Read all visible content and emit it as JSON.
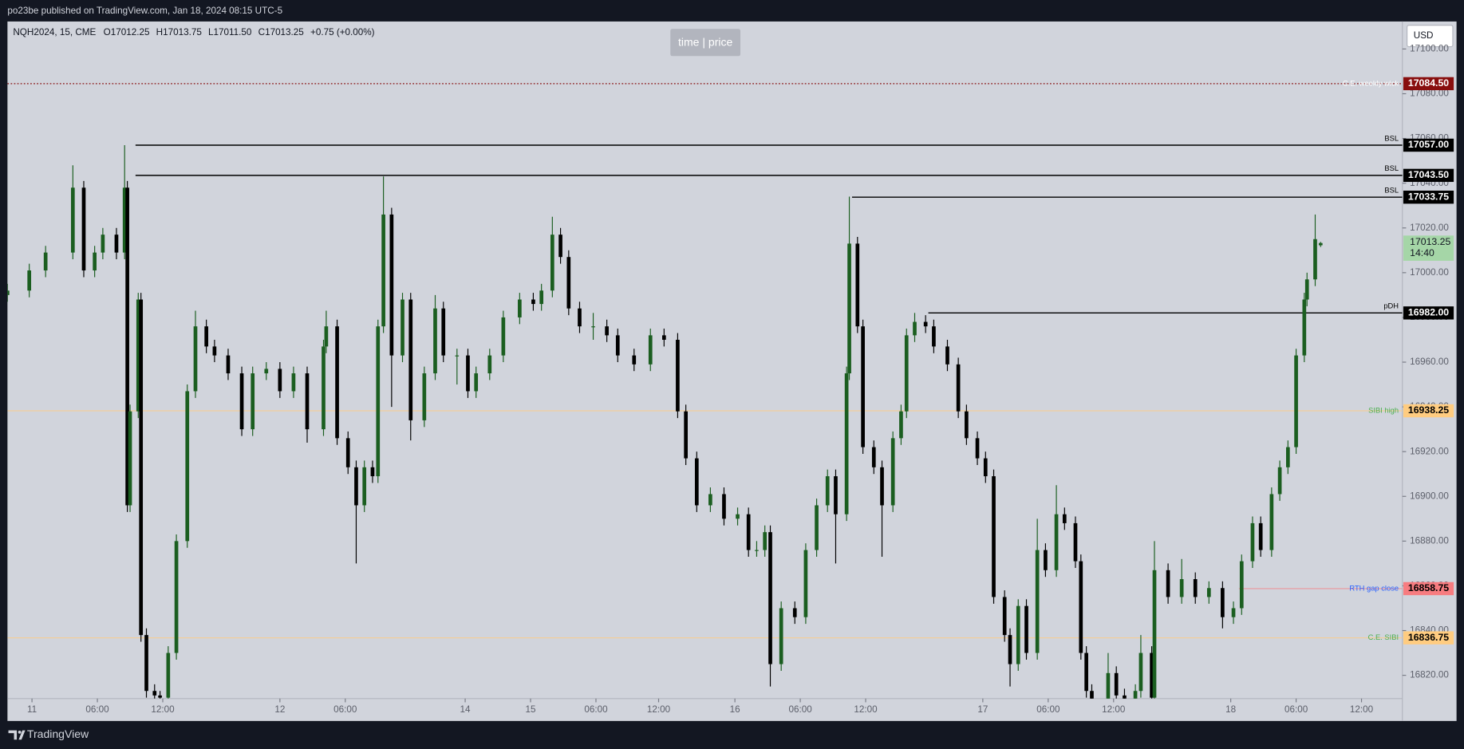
{
  "header": {
    "published": "po23be published on TradingView.com, Jan 18, 2024 08:15 UTC-5"
  },
  "toolbar": {
    "time_price": "time | price",
    "currency": "USD"
  },
  "footer": {
    "brand": "TradingView"
  },
  "chart_data": {
    "type": "candlestick",
    "symbol_info": "NQH2024, 15, CME",
    "ohlc_text": [
      "O17012.25",
      "H17013.75",
      "L17011.50",
      "C17013.25",
      "+0.75 (+0.00%)"
    ],
    "up_color": "#1b5e20",
    "down_color": "#000000",
    "xlim": [
      0,
      512
    ],
    "ylim": [
      16809.6,
      17112.3
    ],
    "xticks": [
      {
        "value": 9,
        "label": "11"
      },
      {
        "value": 33,
        "label": "06:00"
      },
      {
        "value": 57,
        "label": "12:00"
      },
      {
        "value": 100,
        "label": "12"
      },
      {
        "value": 124,
        "label": "06:00"
      },
      {
        "value": 168,
        "label": "14"
      },
      {
        "value": 192,
        "label": "15"
      },
      {
        "value": 216,
        "label": "06:00"
      },
      {
        "value": 239,
        "label": "12:00"
      },
      {
        "value": 267,
        "label": "16"
      },
      {
        "value": 291,
        "label": "06:00"
      },
      {
        "value": 315,
        "label": "12:00"
      },
      {
        "value": 358,
        "label": "17"
      },
      {
        "value": 382,
        "label": "06:00"
      },
      {
        "value": 406,
        "label": "12:00"
      },
      {
        "value": 449,
        "label": "18"
      },
      {
        "value": 473,
        "label": "06:00"
      },
      {
        "value": 497,
        "label": "12:00"
      }
    ],
    "yticks": [
      {
        "value": 16820,
        "label": "16820.00"
      },
      {
        "value": 16840,
        "label": "16840.00"
      },
      {
        "value": 16860,
        "label": "16860.00"
      },
      {
        "value": 16880,
        "label": "16880.00"
      },
      {
        "value": 16900,
        "label": "16900.00"
      },
      {
        "value": 16920,
        "label": "16920.00"
      },
      {
        "value": 16940,
        "label": "16940.00"
      },
      {
        "value": 16960,
        "label": "16960.00"
      },
      {
        "value": 16980,
        "label": "16980.00"
      },
      {
        "value": 17000,
        "label": "17000.00"
      },
      {
        "value": 17020,
        "label": "17020.00"
      },
      {
        "value": 17040,
        "label": "17040.00"
      },
      {
        "value": 17060,
        "label": "17060.00"
      },
      {
        "value": 17080,
        "label": "17080.00"
      },
      {
        "value": 17100,
        "label": "17100.00"
      }
    ],
    "x": [
      0,
      8,
      14,
      24,
      28,
      32,
      35,
      40,
      43,
      44,
      45,
      48,
      49,
      51,
      54,
      56,
      59,
      62,
      66,
      69,
      73,
      76,
      81,
      86,
      90,
      95,
      100,
      105,
      110,
      116,
      117,
      121,
      125,
      128,
      131,
      134,
      136,
      138,
      141,
      145,
      148,
      153,
      157,
      160,
      165,
      169,
      172,
      177,
      182,
      188,
      193,
      196,
      200,
      203,
      206,
      210,
      215,
      220,
      224,
      230,
      236,
      241,
      246,
      249,
      253,
      258,
      263,
      268,
      272,
      275,
      278,
      280,
      284,
      289,
      293,
      297,
      301,
      304,
      308,
      309,
      312,
      314,
      318,
      321,
      325,
      328,
      330,
      333,
      337,
      340,
      345,
      349,
      352,
      356,
      359,
      362,
      366,
      368,
      371,
      374,
      378,
      381,
      385,
      388,
      392,
      394,
      396,
      398,
      404,
      407,
      410,
      414,
      416,
      420,
      421,
      426,
      431,
      436,
      441,
      446,
      450,
      453,
      457,
      460,
      464,
      467,
      470,
      473,
      476,
      477,
      480,
      482
    ],
    "candles": [
      [
        16990,
        16995,
        16987,
        16992
      ],
      [
        16992,
        17004,
        16989,
        17001
      ],
      [
        17001,
        17012,
        16998,
        17009
      ],
      [
        17009,
        17048,
        17006,
        17038
      ],
      [
        17038,
        17041,
        16998,
        17001
      ],
      [
        17001,
        17012,
        16998,
        17009
      ],
      [
        17009,
        17020,
        17006,
        17017
      ],
      [
        17017,
        17020,
        17006,
        17009
      ],
      [
        17009,
        17057,
        17006,
        17038
      ],
      [
        17038,
        17041,
        16893,
        16896
      ],
      [
        16896,
        16941,
        16893,
        16938
      ],
      [
        16938,
        16991,
        16935,
        16988
      ],
      [
        16988,
        16991,
        16835,
        16838
      ],
      [
        16838,
        16841,
        16810,
        16813
      ],
      [
        16813,
        16816,
        16808,
        16811
      ],
      [
        16811,
        16813,
        16806,
        16810
      ],
      [
        16810,
        16833,
        16807,
        16830
      ],
      [
        16830,
        16883,
        16827,
        16880
      ],
      [
        16880,
        16950,
        16877,
        16947
      ],
      [
        16947,
        16983,
        16944,
        16976
      ],
      [
        16976,
        16979,
        16964,
        16967
      ],
      [
        16967,
        16970,
        16960,
        16963
      ],
      [
        16963,
        16966,
        16952,
        16955
      ],
      [
        16955,
        16958,
        16927,
        16930
      ],
      [
        16930,
        16958,
        16927,
        16955
      ],
      [
        16955,
        16960,
        16952,
        16957
      ],
      [
        16957,
        16960,
        16944,
        16947
      ],
      [
        16947,
        16958,
        16944,
        16955
      ],
      [
        16955,
        16958,
        16924,
        16930
      ],
      [
        16930,
        16970,
        16927,
        16967
      ],
      [
        16967,
        16983,
        16964,
        16976
      ],
      [
        16976,
        16979,
        16923,
        16926
      ],
      [
        16926,
        16929,
        16910,
        16913
      ],
      [
        16913,
        16916,
        16870,
        16896
      ],
      [
        16896,
        16916,
        16893,
        16913
      ],
      [
        16913,
        16916,
        16906,
        16909
      ],
      [
        16909,
        16979,
        16906,
        16976
      ],
      [
        16976,
        17043,
        16973,
        17026
      ],
      [
        17026,
        17029,
        16940,
        16963
      ],
      [
        16963,
        16991,
        16960,
        16988
      ],
      [
        16988,
        16991,
        16925,
        16934
      ],
      [
        16934,
        16958,
        16931,
        16955
      ],
      [
        16955,
        16990,
        16952,
        16984
      ],
      [
        16984,
        16987,
        16960,
        16963
      ],
      [
        16963,
        16966,
        16950,
        16963
      ],
      [
        16963,
        16966,
        16944,
        16947
      ],
      [
        16947,
        16958,
        16944,
        16955
      ],
      [
        16955,
        16966,
        16952,
        16963
      ],
      [
        16963,
        16983,
        16960,
        16980
      ],
      [
        16980,
        16991,
        16977,
        16988
      ],
      [
        16988,
        16991,
        16983,
        16986
      ],
      [
        16986,
        16995,
        16983,
        16992
      ],
      [
        16992,
        17025,
        16989,
        17017
      ],
      [
        17017,
        17020,
        17004,
        17007
      ],
      [
        17007,
        17010,
        16981,
        16984
      ],
      [
        16984,
        16987,
        16973,
        16976
      ],
      [
        16976,
        16982,
        16970,
        16976
      ],
      [
        16976,
        16979,
        16969,
        16972
      ],
      [
        16972,
        16975,
        16960,
        16963
      ],
      [
        16963,
        16966,
        16956,
        16959
      ],
      [
        16959,
        16975,
        16956,
        16972
      ],
      [
        16972,
        16975,
        16967,
        16970
      ],
      [
        16970,
        16973,
        16935,
        16938
      ],
      [
        16938,
        16941,
        16914,
        16917
      ],
      [
        16917,
        16920,
        16893,
        16896
      ],
      [
        16896,
        16904,
        16893,
        16901
      ],
      [
        16901,
        16904,
        16887,
        16890
      ],
      [
        16890,
        16895,
        16887,
        16892
      ],
      [
        16892,
        16895,
        16873,
        16876
      ],
      [
        16876,
        16880,
        16873,
        16876
      ],
      [
        16876,
        16887,
        16873,
        16884
      ],
      [
        16884,
        16887,
        16815,
        16825
      ],
      [
        16825,
        16853,
        16822,
        16850
      ],
      [
        16850,
        16853,
        16843,
        16846
      ],
      [
        16846,
        16879,
        16843,
        16876
      ],
      [
        16876,
        16899,
        16873,
        16896
      ],
      [
        16896,
        16912,
        16893,
        16909
      ],
      [
        16909,
        16912,
        16870,
        16892
      ],
      [
        16892,
        16958,
        16889,
        16955
      ],
      [
        16955,
        17034,
        16952,
        17013
      ],
      [
        17013,
        17016,
        16973,
        16976
      ],
      [
        16976,
        16979,
        16919,
        16922
      ],
      [
        16922,
        16925,
        16910,
        16913
      ],
      [
        16913,
        16916,
        16873,
        16896
      ],
      [
        16896,
        16929,
        16893,
        16926
      ],
      [
        16926,
        16941,
        16923,
        16938
      ],
      [
        16938,
        16975,
        16935,
        16972
      ],
      [
        16972,
        16982,
        16969,
        16978
      ],
      [
        16978,
        16981,
        16973,
        16976
      ],
      [
        16976,
        16979,
        16964,
        16967
      ],
      [
        16967,
        16970,
        16956,
        16959
      ],
      [
        16959,
        16962,
        16935,
        16938
      ],
      [
        16938,
        16941,
        16923,
        16926
      ],
      [
        16926,
        16929,
        16914,
        16917
      ],
      [
        16917,
        16920,
        16906,
        16909
      ],
      [
        16909,
        16912,
        16852,
        16855
      ],
      [
        16855,
        16858,
        16835,
        16838
      ],
      [
        16838,
        16841,
        16815,
        16825
      ],
      [
        16825,
        16854,
        16822,
        16851
      ],
      [
        16851,
        16854,
        16827,
        16830
      ],
      [
        16830,
        16890,
        16827,
        16876
      ],
      [
        16876,
        16879,
        16864,
        16867
      ],
      [
        16867,
        16905,
        16864,
        16892
      ],
      [
        16892,
        16895,
        16885,
        16888
      ],
      [
        16888,
        16891,
        16868,
        16871
      ],
      [
        16871,
        16874,
        16827,
        16830
      ],
      [
        16830,
        16833,
        16810,
        16813
      ],
      [
        16813,
        16816,
        16805,
        16808
      ],
      [
        16808,
        16830,
        16805,
        16821
      ],
      [
        16821,
        16824,
        16808,
        16811
      ],
      [
        16811,
        16814,
        16805,
        16808
      ],
      [
        16808,
        16816,
        16805,
        16813
      ],
      [
        16813,
        16838,
        16810,
        16830
      ],
      [
        16830,
        16833,
        16805,
        16810
      ],
      [
        16810,
        16880,
        16807,
        16867
      ],
      [
        16867,
        16870,
        16852,
        16855
      ],
      [
        16855,
        16872,
        16852,
        16863
      ],
      [
        16863,
        16866,
        16852,
        16855
      ],
      [
        16855,
        16862,
        16852,
        16859
      ],
      [
        16859,
        16862,
        16841,
        16846
      ],
      [
        16846,
        16853,
        16843,
        16850
      ],
      [
        16850,
        16874,
        16847,
        16871
      ],
      [
        16871,
        16891,
        16868,
        16888
      ],
      [
        16888,
        16891,
        16873,
        16876
      ],
      [
        16876,
        16904,
        16873,
        16901
      ],
      [
        16901,
        16916,
        16898,
        16913
      ],
      [
        16913,
        16925,
        16910,
        16922
      ],
      [
        16922,
        16966,
        16919,
        16963
      ],
      [
        16963,
        16991,
        16960,
        16988
      ],
      [
        16988,
        17000,
        16985,
        16997
      ],
      [
        16997,
        17026,
        16994,
        17015
      ],
      [
        17012.25,
        17013.75,
        17011.5,
        17013.25
      ]
    ],
    "levels": [
      {
        "name": "C.E. weekly wick",
        "value": 17084.5,
        "value_label": "17084.50",
        "color": "#880e0e",
        "text_color": "#ffffff",
        "tag_text_color": "#ffffff",
        "style": "dotted",
        "start_x": 0
      },
      {
        "name": "BSL",
        "value": 17057,
        "value_label": "17057.00",
        "color": "#000000",
        "text_color": "#000000",
        "tag_text_color": "#ffffff",
        "style": "solid",
        "start_x": 47
      },
      {
        "name": "BSL",
        "value": 17043.5,
        "value_label": "17043.50",
        "color": "#000000",
        "text_color": "#000000",
        "tag_text_color": "#ffffff",
        "style": "solid",
        "start_x": 47
      },
      {
        "name": "BSL",
        "value": 17033.75,
        "value_label": "17033.75",
        "color": "#000000",
        "text_color": "#000000",
        "tag_text_color": "#ffffff",
        "style": "solid",
        "start_x": 310
      },
      {
        "name": "pDH",
        "value": 16982,
        "value_label": "16982.00",
        "color": "#000000",
        "text_color": "#000000",
        "tag_text_color": "#ffffff",
        "style": "solid",
        "start_x": 338
      },
      {
        "name": "SIBI high",
        "value": 16938.25,
        "value_label": "16938.25",
        "color": "#ffcc80",
        "text_color": "#4caf50",
        "tag_text_color": "#000000",
        "style": "faint",
        "start_x": 0
      },
      {
        "name": "RTH gap close",
        "value": 16858.75,
        "value_label": "16858.75",
        "color": "#f77c80",
        "text_color": "#2962ff",
        "tag_text_color": "#000000",
        "style": "faint",
        "start_x": 452
      },
      {
        "name": "C.E. SIBI",
        "value": 16836.75,
        "value_label": "16836.75",
        "color": "#ffcc80",
        "text_color": "#4caf50",
        "tag_text_color": "#000000",
        "style": "faint",
        "start_x": 0
      }
    ],
    "last_price": {
      "value": 17013.25,
      "label": "17013.25",
      "countdown": "14:40",
      "color": "#a5d6a7"
    }
  }
}
